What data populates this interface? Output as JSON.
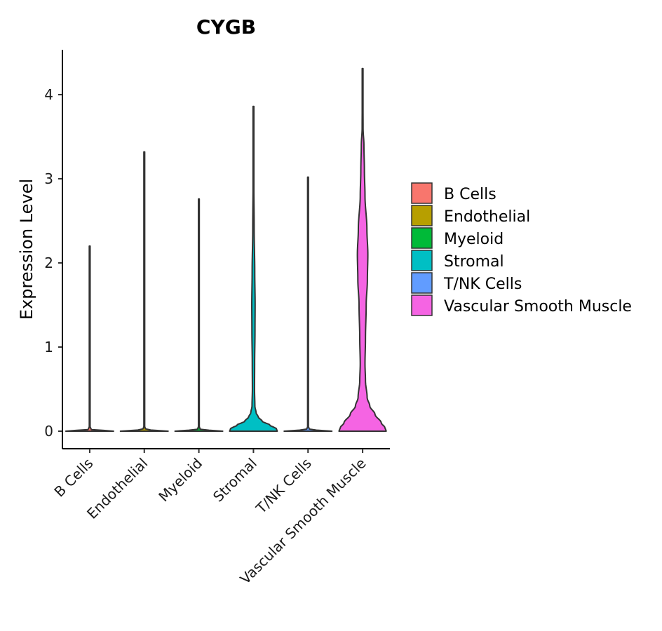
{
  "chart_data": {
    "type": "violin",
    "title": "CYGB",
    "xlabel": "",
    "ylabel": "Expression Level",
    "ylim": [
      -0.2,
      4.55
    ],
    "yticks": [
      0,
      1,
      2,
      3,
      4
    ],
    "grid": false,
    "legend_position": "right",
    "categories": [
      "B Cells",
      "Endothelial",
      "Myeloid",
      "Stromal",
      "T/NK Cells",
      "Vascular Smooth Muscle"
    ],
    "series": [
      {
        "name": "B Cells",
        "color": "#F8766D",
        "max": 2.2,
        "profile": [
          [
            0,
            1
          ],
          [
            0.02,
            0.06
          ],
          [
            0.06,
            0.012
          ],
          [
            0.15,
            0.01
          ],
          [
            2.2,
            0.005
          ]
        ]
      },
      {
        "name": "Endothelial",
        "color": "#B79F00",
        "max": 3.32,
        "profile": [
          [
            0,
            1
          ],
          [
            0.02,
            0.06
          ],
          [
            0.06,
            0.012
          ],
          [
            0.15,
            0.01
          ],
          [
            3.32,
            0.005
          ]
        ]
      },
      {
        "name": "Myeloid",
        "color": "#00BA38",
        "max": 2.76,
        "profile": [
          [
            0,
            1
          ],
          [
            0.02,
            0.06
          ],
          [
            0.06,
            0.012
          ],
          [
            0.15,
            0.01
          ],
          [
            2.76,
            0.005
          ]
        ]
      },
      {
        "name": "Stromal",
        "color": "#00BFC4",
        "max": 3.86,
        "profile": [
          [
            0,
            1
          ],
          [
            0.03,
            0.96
          ],
          [
            0.07,
            0.7
          ],
          [
            0.12,
            0.36
          ],
          [
            0.17,
            0.2
          ],
          [
            0.22,
            0.11
          ],
          [
            0.3,
            0.06
          ],
          [
            0.5,
            0.045
          ],
          [
            0.8,
            0.05
          ],
          [
            1.2,
            0.065
          ],
          [
            1.5,
            0.07
          ],
          [
            1.9,
            0.055
          ],
          [
            2.4,
            0.03
          ],
          [
            3.0,
            0.015
          ],
          [
            3.86,
            0.005
          ]
        ]
      },
      {
        "name": "T/NK Cells",
        "color": "#619CFF",
        "max": 3.02,
        "profile": [
          [
            0,
            1
          ],
          [
            0.02,
            0.06
          ],
          [
            0.06,
            0.012
          ],
          [
            0.15,
            0.01
          ],
          [
            3.02,
            0.005
          ]
        ]
      },
      {
        "name": "Vascular Smooth Muscle",
        "color": "#F564E3",
        "max": 4.31,
        "profile": [
          [
            0,
            0.99
          ],
          [
            0.04,
            0.94
          ],
          [
            0.1,
            0.78
          ],
          [
            0.2,
            0.52
          ],
          [
            0.3,
            0.3
          ],
          [
            0.4,
            0.19
          ],
          [
            0.6,
            0.12
          ],
          [
            0.8,
            0.1
          ],
          [
            1.1,
            0.12
          ],
          [
            1.5,
            0.15
          ],
          [
            1.8,
            0.2
          ],
          [
            2.1,
            0.22
          ],
          [
            2.4,
            0.18
          ],
          [
            2.8,
            0.1
          ],
          [
            3.1,
            0.075
          ],
          [
            3.4,
            0.055
          ],
          [
            3.6,
            0.02
          ],
          [
            4.31,
            0.005
          ]
        ]
      }
    ]
  }
}
